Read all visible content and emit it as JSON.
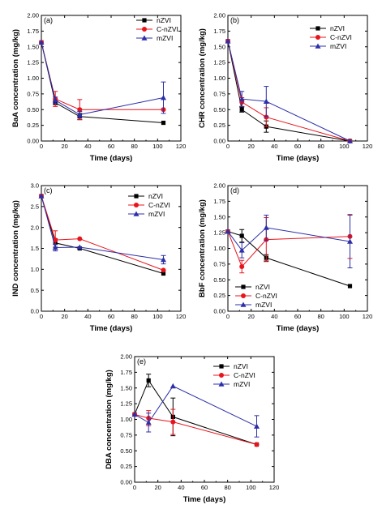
{
  "colors": {
    "nZVI": "#000000",
    "C-nZVI": "#e8141c",
    "mZVI": "#2c2fa8"
  },
  "markers": {
    "nZVI": "square",
    "C-nZVI": "circle",
    "mZVI": "triangle"
  },
  "chart_data": [
    {
      "type": "line",
      "panel_label": "(a)",
      "xlabel": "Time (days)",
      "ylabel": "BaA concentration (mg/kg)",
      "xlim": [
        0,
        120
      ],
      "ylim": [
        0,
        2.0
      ],
      "xticks": [
        0,
        20,
        40,
        60,
        80,
        100,
        120
      ],
      "yticks": [
        0.0,
        0.25,
        0.5,
        0.75,
        1.0,
        1.25,
        1.5,
        1.75,
        2.0
      ],
      "ytick_labels": [
        "0.00",
        "0.25",
        "0.50",
        "0.75",
        "1.00",
        "1.25",
        "1.50",
        "1.75",
        "2.00"
      ],
      "legend_position": "top-right",
      "series": [
        {
          "name": "nZVI",
          "x": [
            0,
            12,
            33,
            105
          ],
          "y": [
            1.57,
            0.61,
            0.39,
            0.29
          ],
          "err": [
            0,
            0.03,
            0.05,
            0
          ]
        },
        {
          "name": "C-nZVI",
          "x": [
            0,
            12,
            33,
            105
          ],
          "y": [
            1.57,
            0.67,
            0.5,
            0.5
          ],
          "err": [
            0,
            0.12,
            0.16,
            0
          ]
        },
        {
          "name": "mZVI",
          "x": [
            0,
            12,
            33,
            105
          ],
          "y": [
            1.57,
            0.65,
            0.42,
            0.69
          ],
          "err": [
            0,
            0.05,
            0.05,
            0.25
          ]
        }
      ]
    },
    {
      "type": "line",
      "panel_label": "(b)",
      "xlabel": "Time (days)",
      "ylabel": "CHR concentration (mg/kg)",
      "xlim": [
        0,
        120
      ],
      "ylim": [
        0,
        2.0
      ],
      "xticks": [
        0,
        20,
        40,
        60,
        80,
        100,
        120
      ],
      "yticks": [
        0.0,
        0.25,
        0.5,
        0.75,
        1.0,
        1.25,
        1.5,
        1.75,
        2.0
      ],
      "ytick_labels": [
        "0.00",
        "0.25",
        "0.50",
        "0.75",
        "1.00",
        "1.25",
        "1.50",
        "1.75",
        "2.00"
      ],
      "legend_position": "top-right",
      "series": [
        {
          "name": "nZVI",
          "x": [
            0,
            12,
            33,
            105
          ],
          "y": [
            1.59,
            0.5,
            0.23,
            0.0
          ],
          "err": [
            0,
            0.04,
            0.09,
            0
          ]
        },
        {
          "name": "C-nZVI",
          "x": [
            0,
            12,
            33,
            105
          ],
          "y": [
            1.59,
            0.62,
            0.38,
            0.0
          ],
          "err": [
            0,
            0.07,
            0.15,
            0
          ]
        },
        {
          "name": "mZVI",
          "x": [
            0,
            12,
            33,
            105
          ],
          "y": [
            1.59,
            0.67,
            0.63,
            0.0
          ],
          "err": [
            0,
            0.12,
            0.24,
            0
          ]
        }
      ]
    },
    {
      "type": "line",
      "panel_label": "(c)",
      "xlabel": "Time (days)",
      "ylabel": "IND concentration (mg/kg)",
      "xlim": [
        0,
        120
      ],
      "ylim": [
        0,
        3.0
      ],
      "xticks": [
        0,
        20,
        40,
        60,
        80,
        100,
        120
      ],
      "yticks": [
        0.0,
        0.5,
        1.0,
        1.5,
        2.0,
        2.5,
        3.0
      ],
      "ytick_labels": [
        "0.0",
        "0.5",
        "1.0",
        "1.5",
        "2.0",
        "2.5",
        "3.0"
      ],
      "legend_position": "top-right",
      "series": [
        {
          "name": "nZVI",
          "x": [
            0,
            12,
            33,
            105
          ],
          "y": [
            2.75,
            1.63,
            1.5,
            0.9
          ],
          "err": [
            0,
            0.1,
            0,
            0
          ]
        },
        {
          "name": "C-nZVI",
          "x": [
            0,
            12,
            33,
            105
          ],
          "y": [
            2.75,
            1.7,
            1.73,
            0.98
          ],
          "err": [
            0,
            0.22,
            0,
            0
          ]
        },
        {
          "name": "mZVI",
          "x": [
            0,
            12,
            33,
            105
          ],
          "y": [
            2.75,
            1.52,
            1.53,
            1.23
          ],
          "err": [
            0,
            0.08,
            0,
            0.1
          ]
        }
      ]
    },
    {
      "type": "line",
      "panel_label": "(d)",
      "xlabel": "Time (days)",
      "ylabel": "BbF concentration (mg/kg)",
      "xlim": [
        0,
        120
      ],
      "ylim": [
        0,
        2.0
      ],
      "xticks": [
        0,
        20,
        40,
        60,
        80,
        100,
        120
      ],
      "yticks": [
        0.0,
        0.25,
        0.5,
        0.75,
        1.0,
        1.25,
        1.5,
        1.75,
        2.0
      ],
      "ytick_labels": [
        "0.00",
        "0.25",
        "0.50",
        "0.75",
        "1.00",
        "1.25",
        "1.50",
        "1.75",
        "2.00"
      ],
      "legend_position": "bottom-left",
      "series": [
        {
          "name": "nZVI",
          "x": [
            0,
            12,
            33,
            105
          ],
          "y": [
            1.27,
            1.2,
            0.85,
            0.4
          ],
          "err": [
            0,
            0.1,
            0.05,
            0
          ]
        },
        {
          "name": "C-nZVI",
          "x": [
            0,
            12,
            33,
            105
          ],
          "y": [
            1.27,
            0.71,
            1.14,
            1.19
          ],
          "err": [
            0,
            0.1,
            0.35,
            0.35
          ]
        },
        {
          "name": "mZVI",
          "x": [
            0,
            12,
            33,
            105
          ],
          "y": [
            1.27,
            0.97,
            1.33,
            1.11
          ],
          "err": [
            0,
            0.12,
            0.2,
            0.42
          ]
        }
      ]
    },
    {
      "type": "line",
      "panel_label": "(e)",
      "xlabel": "Time (days)",
      "ylabel": "DBA concentration (mg/kg)",
      "xlim": [
        0,
        120
      ],
      "ylim": [
        0,
        2.0
      ],
      "xticks": [
        0,
        20,
        40,
        60,
        80,
        100,
        120
      ],
      "yticks": [
        0.0,
        0.25,
        0.5,
        0.75,
        1.0,
        1.25,
        1.5,
        1.75,
        2.0
      ],
      "ytick_labels": [
        "0.00",
        "0.25",
        "0.50",
        "0.75",
        "1.00",
        "1.25",
        "1.50",
        "1.75",
        "2.00"
      ],
      "legend_position": "top-right",
      "series": [
        {
          "name": "nZVI",
          "x": [
            0,
            12,
            33,
            105
          ],
          "y": [
            1.08,
            1.62,
            1.04,
            0.6
          ],
          "err": [
            0,
            0.1,
            0.3,
            0
          ]
        },
        {
          "name": "C-nZVI",
          "x": [
            0,
            12,
            33,
            105
          ],
          "y": [
            1.08,
            1.02,
            0.96,
            0.6
          ],
          "err": [
            0,
            0.12,
            0.2,
            0
          ]
        },
        {
          "name": "mZVI",
          "x": [
            0,
            12,
            33,
            105
          ],
          "y": [
            1.08,
            0.95,
            1.53,
            0.89
          ],
          "err": [
            0,
            0.15,
            0,
            0.17
          ]
        }
      ]
    }
  ]
}
